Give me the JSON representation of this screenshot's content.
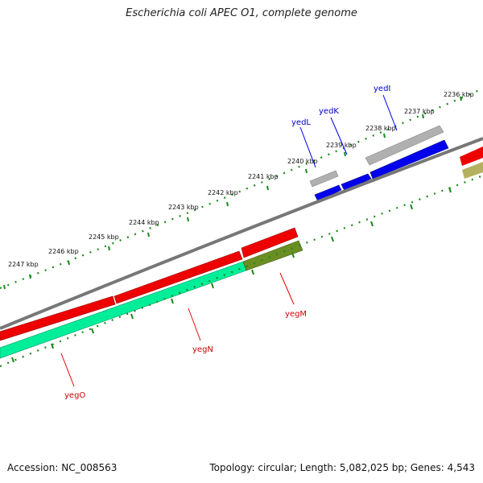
{
  "title": "Escherichia coli APEC O1, complete genome",
  "accession": "Accession: NC_008563",
  "stats": "Topology: circular; Length: 5,082,025 bp; Genes: 4,543",
  "kbp_labels": [
    "2236 kbp",
    "2237 kbp",
    "2238 kbp",
    "2239 kbp",
    "2240 kbp",
    "2241 kbp",
    "2242 kbp",
    "2243 kbp",
    "2244 kbp",
    "2245 kbp",
    "2246 kbp",
    "2247 kbp"
  ],
  "gene_labels": {
    "yedI": "yedI",
    "yedK": "yedK",
    "yedL": "yedL",
    "yegM": "yegM",
    "yegN": "yegN",
    "yegO": "yegO"
  },
  "colors": {
    "backbone": "#777777",
    "forward_gene": "#0000ee",
    "forward_pseudo": "#b0b0b0",
    "reverse_gene": "#ee0000",
    "reverse_cds": "#00ee99",
    "reverse_other": "#6b8e23",
    "ticks": "#1a8a1a",
    "forward_label": "#0000cc",
    "reverse_label": "#cc0000"
  }
}
